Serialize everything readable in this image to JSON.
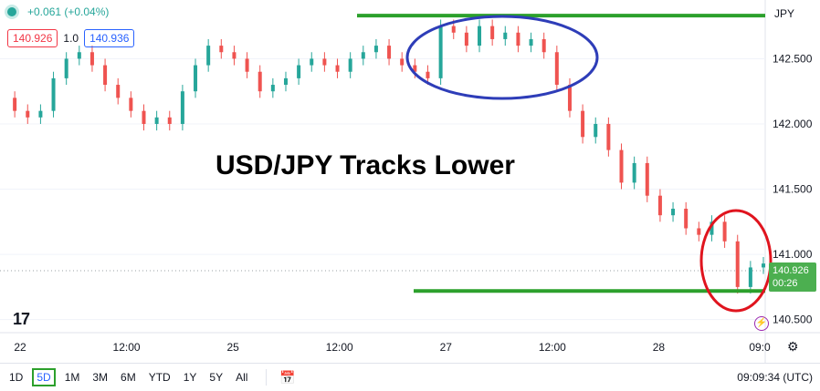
{
  "header": {
    "change": "+0.061 (+0.04%)",
    "bid": "140.926",
    "spread": "1.0",
    "ask": "140.936",
    "currency": "JPY"
  },
  "overlay_title": "USD/JPY Tracks Lower",
  "price_tag": {
    "price": "140.926",
    "countdown": "00:26"
  },
  "bottom": {
    "timeframes": [
      "1D",
      "5D",
      "1M",
      "3M",
      "6M",
      "YTD",
      "1Y",
      "5Y",
      "All"
    ],
    "active_timeframe": "5D",
    "clock": "09:09:34 (UTC)"
  },
  "colors": {
    "up": "#26a69a",
    "down": "#ef5350",
    "line": "#2ca02c",
    "ellipse_blue": "#2e3db8",
    "ellipse_red": "#e0141e"
  },
  "chart_data": {
    "type": "line",
    "title": "USD/JPY Tracks Lower",
    "ylim": [
      140.4,
      142.95
    ],
    "y_ticks": [
      "142.500",
      "142.000",
      "141.500",
      "141.000",
      "140.500"
    ],
    "x_ticks": [
      "22",
      "12:00",
      "25",
      "12:00",
      "27",
      "12:00",
      "28",
      "09:0"
    ],
    "series": [
      {
        "values": [
          142.2,
          142.1,
          142.05,
          142.1,
          142.35,
          142.5,
          142.55,
          142.45,
          142.3,
          142.2,
          142.1,
          142.0,
          142.05,
          142.0,
          142.25,
          142.45,
          142.6,
          142.55,
          142.5,
          142.4,
          142.25,
          142.3,
          142.35,
          142.45,
          142.5,
          142.45,
          142.4,
          142.5,
          142.55,
          142.6,
          142.5,
          142.45,
          142.4,
          142.35,
          142.75,
          142.7,
          142.6,
          142.75,
          142.65,
          142.7,
          142.6,
          142.65,
          142.55,
          142.3,
          142.1,
          141.9,
          142.0,
          141.8,
          141.55,
          141.7,
          141.45,
          141.3,
          141.35,
          141.2,
          141.15,
          141.25,
          141.1,
          140.75,
          140.9,
          140.93
        ]
      }
    ],
    "reference_lines": [
      142.83,
      140.72
    ]
  }
}
